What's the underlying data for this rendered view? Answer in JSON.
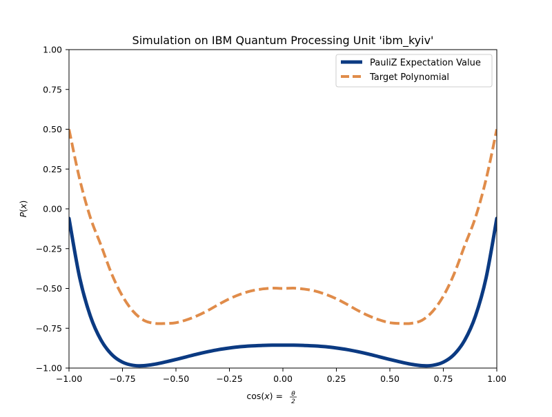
{
  "chart_data": {
    "type": "line",
    "title": "Simulation on IBM Quantum Processing Unit 'ibm_kyiv'",
    "xlabel_main": "cos(",
    "xlabel_var": "x",
    "xlabel_close": ") = ",
    "xlabel_frac_num": "θ",
    "xlabel_frac_den": "2",
    "ylabel_main": "P",
    "ylabel_open": "(",
    "ylabel_var": "x",
    "ylabel_close": ")",
    "xlim": [
      -1.0,
      1.0
    ],
    "ylim": [
      -1.0,
      1.0
    ],
    "xticks": [
      -1.0,
      -0.75,
      -0.5,
      -0.25,
      0.0,
      0.25,
      0.5,
      0.75,
      1.0
    ],
    "xtick_labels": [
      "−1.00",
      "−0.75",
      "−0.50",
      "−0.25",
      "0.00",
      "0.25",
      "0.50",
      "0.75",
      "1.00"
    ],
    "yticks": [
      -1.0,
      -0.75,
      -0.5,
      -0.25,
      0.0,
      0.25,
      0.5,
      0.75,
      1.0
    ],
    "ytick_labels": [
      "−1.00",
      "−0.75",
      "−0.50",
      "−0.25",
      "0.00",
      "0.25",
      "0.50",
      "0.75",
      "1.00"
    ],
    "grid": false,
    "legend_position": "top-right",
    "series": [
      {
        "name": "PauliZ Expectation Value",
        "color": "#0b3a82",
        "style": "solid",
        "x": [
          -1.0,
          -0.95,
          -0.9,
          -0.85,
          -0.8,
          -0.75,
          -0.7,
          -0.65,
          -0.6,
          -0.55,
          -0.5,
          -0.45,
          -0.4,
          -0.35,
          -0.3,
          -0.25,
          -0.2,
          -0.15,
          -0.1,
          -0.05,
          0.0,
          0.05,
          0.1,
          0.15,
          0.2,
          0.25,
          0.3,
          0.35,
          0.4,
          0.45,
          0.5,
          0.55,
          0.6,
          0.65,
          0.7,
          0.75,
          0.8,
          0.85,
          0.9,
          0.95,
          1.0
        ],
        "y": [
          -0.06,
          -0.433,
          -0.674,
          -0.825,
          -0.915,
          -0.963,
          -0.983,
          -0.985,
          -0.976,
          -0.962,
          -0.946,
          -0.929,
          -0.912,
          -0.897,
          -0.884,
          -0.874,
          -0.866,
          -0.861,
          -0.858,
          -0.856,
          -0.856,
          -0.856,
          -0.858,
          -0.861,
          -0.866,
          -0.874,
          -0.884,
          -0.897,
          -0.912,
          -0.929,
          -0.946,
          -0.962,
          -0.976,
          -0.985,
          -0.983,
          -0.963,
          -0.915,
          -0.825,
          -0.674,
          -0.433,
          -0.06
        ]
      },
      {
        "name": "Target Polynomial",
        "color": "#e08c4a",
        "style": "dashed",
        "x": [
          -1.0,
          -0.95,
          -0.9,
          -0.85,
          -0.8,
          -0.75,
          -0.7,
          -0.65,
          -0.6,
          -0.55,
          -0.5,
          -0.45,
          -0.4,
          -0.35,
          -0.3,
          -0.25,
          -0.2,
          -0.15,
          -0.1,
          -0.05,
          0.0,
          0.05,
          0.1,
          0.15,
          0.2,
          0.25,
          0.3,
          0.35,
          0.4,
          0.45,
          0.5,
          0.55,
          0.6,
          0.65,
          0.7,
          0.75,
          0.8,
          0.85,
          0.9,
          0.95,
          1.0
        ],
        "y": [
          0.5,
          0.186,
          -0.055,
          -0.23,
          -0.41,
          -0.548,
          -0.644,
          -0.7,
          -0.719,
          -0.72,
          -0.715,
          -0.697,
          -0.671,
          -0.638,
          -0.6,
          -0.565,
          -0.537,
          -0.516,
          -0.504,
          -0.498,
          -0.5,
          -0.498,
          -0.504,
          -0.516,
          -0.537,
          -0.565,
          -0.6,
          -0.638,
          -0.671,
          -0.697,
          -0.715,
          -0.72,
          -0.719,
          -0.7,
          -0.644,
          -0.548,
          -0.41,
          -0.23,
          -0.055,
          0.186,
          0.5
        ]
      }
    ]
  }
}
